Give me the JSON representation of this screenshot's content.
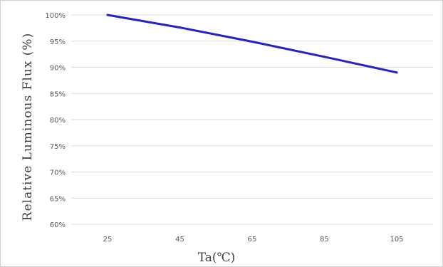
{
  "chart_data": {
    "type": "line",
    "xlabel": "Ta(℃)",
    "ylabel": "Relative Luminous Flux (%)",
    "categories": [
      "25",
      "45",
      "65",
      "85",
      "105"
    ],
    "x": [
      25,
      45,
      65,
      85,
      105
    ],
    "y_ticks": [
      "60%",
      "65%",
      "70%",
      "75%",
      "80%",
      "85%",
      "90%",
      "95%",
      "100%"
    ],
    "ylim": [
      60,
      100
    ],
    "grid": true,
    "legend": "none",
    "series": [
      {
        "values": [
          100,
          97.6,
          94.9,
          92.0,
          89.0
        ],
        "color": "#2222c8"
      }
    ],
    "colors": {
      "gridline": "#d9d9d9",
      "line": "#2222c8",
      "frame": "#d0d0d0"
    }
  }
}
